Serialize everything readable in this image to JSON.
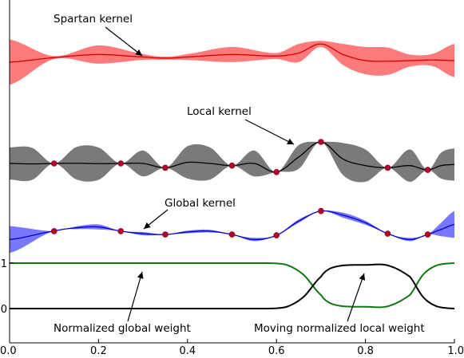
{
  "chart_data": {
    "type": "line",
    "title": "",
    "xlabel": "",
    "ylabel": "",
    "xlim": [
      0.0,
      1.0
    ],
    "x_ticks": [
      "0.0",
      "0.2",
      "0.4",
      "0.6",
      "0.8",
      "1.0"
    ],
    "y_ticks": [
      "0",
      "1"
    ],
    "grid": false,
    "legend": "none",
    "colors": {
      "spartan_band": "#ff7a7a",
      "spartan_line": "#d40000",
      "local_band": "#7a7a7a",
      "local_line": "#000000",
      "global_band": "#7777ff",
      "global_line": "#0000cc",
      "observation_points": "#b5002a",
      "global_weight": "#117711",
      "local_weight": "#000000"
    },
    "observations_x": [
      0.1,
      0.25,
      0.35,
      0.5,
      0.6,
      0.7,
      0.85,
      0.94
    ],
    "panels": [
      {
        "name": "Spartan kernel",
        "x": [
          0.0,
          0.1,
          0.2,
          0.3,
          0.35,
          0.4,
          0.5,
          0.6,
          0.65,
          0.7,
          0.75,
          0.8,
          0.85,
          0.9,
          0.95,
          1.0
        ],
        "mean": [
          -0.05,
          0.1,
          0.2,
          0.12,
          0.08,
          0.12,
          0.2,
          0.15,
          0.25,
          0.55,
          0.2,
          0.0,
          -0.02,
          0.0,
          0.02,
          0.0
        ],
        "band": [
          0.75,
          0.05,
          0.3,
          0.1,
          0.05,
          0.1,
          0.25,
          0.1,
          0.3,
          0.1,
          0.35,
          0.45,
          0.45,
          0.2,
          0.2,
          0.55
        ]
      },
      {
        "name": "Local kernel",
        "x": [
          0.0,
          0.05,
          0.1,
          0.15,
          0.2,
          0.25,
          0.3,
          0.35,
          0.4,
          0.45,
          0.5,
          0.55,
          0.6,
          0.65,
          0.7,
          0.75,
          0.8,
          0.85,
          0.9,
          0.94,
          0.97,
          1.0
        ],
        "mean": [
          0.0,
          -0.02,
          0.0,
          0.01,
          -0.01,
          0.0,
          0.0,
          -0.2,
          0.05,
          0.0,
          -0.1,
          0.0,
          -0.4,
          0.3,
          1.0,
          0.2,
          -0.1,
          -0.2,
          -0.1,
          -0.3,
          -0.1,
          -0.05
        ],
        "band": [
          0.75,
          0.75,
          0.0,
          0.75,
          0.75,
          0.0,
          0.6,
          0.0,
          0.75,
          0.75,
          0.0,
          0.6,
          0.0,
          0.55,
          0.0,
          0.75,
          0.75,
          0.0,
          0.75,
          0.0,
          0.6,
          0.75
        ]
      },
      {
        "name": "Global kernel",
        "x": [
          0.0,
          0.1,
          0.15,
          0.2,
          0.25,
          0.3,
          0.35,
          0.4,
          0.45,
          0.5,
          0.55,
          0.6,
          0.65,
          0.7,
          0.75,
          0.8,
          0.85,
          0.9,
          0.94,
          0.97,
          1.0
        ],
        "mean": [
          -0.4,
          0.1,
          0.3,
          0.35,
          0.1,
          -0.05,
          -0.1,
          0.05,
          0.1,
          -0.1,
          -0.4,
          -0.15,
          0.7,
          1.3,
          1.05,
          0.6,
          -0.05,
          -0.4,
          -0.1,
          0.2,
          0.5
        ],
        "band": [
          0.8,
          0.0,
          0.08,
          0.15,
          0.0,
          0.1,
          0.0,
          0.08,
          0.08,
          0.0,
          0.1,
          0.0,
          0.1,
          0.0,
          0.15,
          0.12,
          0.0,
          0.1,
          0.0,
          0.4,
          0.8
        ]
      }
    ],
    "weights": [
      {
        "name": "Normalized global weight",
        "x": [
          0.0,
          0.55,
          0.62,
          0.66,
          0.7,
          0.72,
          0.75,
          0.8,
          0.85,
          0.9,
          0.93,
          0.96,
          1.0
        ],
        "y": [
          1.0,
          1.0,
          0.97,
          0.75,
          0.3,
          0.12,
          0.05,
          0.04,
          0.05,
          0.3,
          0.75,
          0.95,
          1.0
        ]
      },
      {
        "name": "Moving normalized local weight",
        "x": [
          0.0,
          0.55,
          0.62,
          0.66,
          0.7,
          0.72,
          0.75,
          0.8,
          0.85,
          0.9,
          0.93,
          0.96,
          1.0
        ],
        "y": [
          0.0,
          0.0,
          0.03,
          0.25,
          0.7,
          0.88,
          0.95,
          0.96,
          0.95,
          0.7,
          0.25,
          0.05,
          0.0
        ]
      }
    ],
    "annotations": [
      "Spartan kernel",
      "Local kernel",
      "Global kernel",
      "Normalized global weight",
      "Moving normalized local weight"
    ]
  }
}
